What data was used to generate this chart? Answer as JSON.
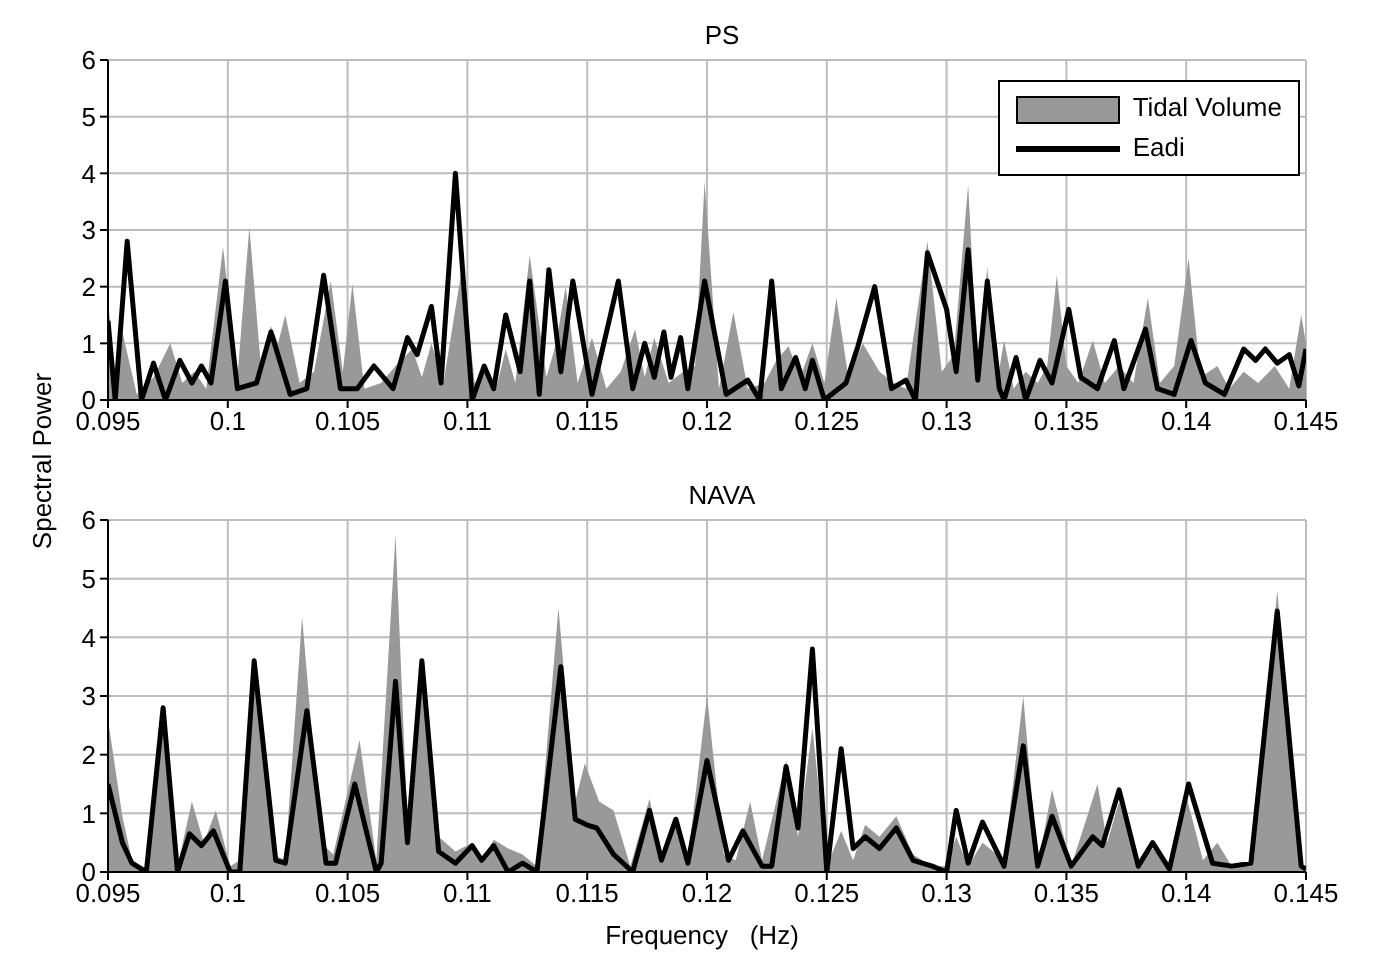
{
  "chart_data": [
    {
      "type": "area",
      "title": "PS",
      "ylabel": "Spectral Power",
      "xlim": [
        0.095,
        0.145
      ],
      "xticks": [
        0.095,
        0.1,
        0.105,
        0.11,
        0.115,
        0.12,
        0.125,
        0.13,
        0.135,
        0.14,
        0.145
      ],
      "ylim": [
        0,
        6
      ],
      "yticks": [
        0,
        1,
        2,
        3,
        4,
        5,
        6
      ],
      "grid": true,
      "legend": "top right",
      "series": [
        {
          "name": "Tidal Volume",
          "color": "#999999",
          "x": [
            0.095,
            0.0953,
            0.0956,
            0.0962,
            0.0969,
            0.0976,
            0.0981,
            0.0986,
            0.0991,
            0.0998,
            0.1004,
            0.1009,
            0.1014,
            0.1018,
            0.1021,
            0.1024,
            0.103,
            0.1036,
            0.1043,
            0.1048,
            0.1052,
            0.1057,
            0.1064,
            0.107,
            0.1077,
            0.1081,
            0.1085,
            0.109,
            0.1098,
            0.1103,
            0.1108,
            0.1112,
            0.1116,
            0.112,
            0.1126,
            0.1133,
            0.1137,
            0.1141,
            0.1146,
            0.1152,
            0.1158,
            0.1164,
            0.117,
            0.1174,
            0.1178,
            0.1184,
            0.119,
            0.1195,
            0.1199,
            0.1205,
            0.1211,
            0.1217,
            0.1224,
            0.1229,
            0.1234,
            0.1239,
            0.1244,
            0.1249,
            0.1254,
            0.1259,
            0.1265,
            0.1272,
            0.1278,
            0.1283,
            0.1292,
            0.1298,
            0.1303,
            0.1309,
            0.1313,
            0.1317,
            0.1321,
            0.1324,
            0.1328,
            0.1333,
            0.1338,
            0.1342,
            0.1346,
            0.135,
            0.1355,
            0.1361,
            0.1366,
            0.1372,
            0.1378,
            0.1384,
            0.1389,
            0.1395,
            0.1401,
            0.1406,
            0.1413,
            0.1418,
            0.1424,
            0.143,
            0.1437,
            0.1443,
            0.1448,
            0.145
          ],
          "values": [
            1.8,
            0.3,
            1.2,
            0.1,
            0.4,
            1.0,
            0.3,
            0.5,
            0.2,
            2.7,
            0.4,
            3.05,
            0.5,
            1.3,
            1.0,
            1.5,
            0.3,
            0.5,
            2.1,
            0.5,
            2.05,
            0.2,
            0.3,
            0.6,
            0.9,
            0.4,
            1.0,
            0.3,
            2.4,
            0.3,
            0.5,
            0.2,
            0.9,
            0.3,
            2.55,
            0.4,
            1.0,
            2.0,
            0.3,
            1.1,
            0.2,
            0.5,
            1.25,
            0.4,
            1.1,
            0.3,
            0.5,
            0.6,
            3.85,
            0.2,
            1.55,
            0.2,
            0.3,
            0.7,
            0.95,
            0.4,
            1.0,
            0.3,
            1.8,
            0.4,
            1.0,
            0.5,
            0.3,
            0.2,
            2.8,
            0.5,
            0.8,
            3.8,
            0.5,
            2.35,
            0.3,
            1.05,
            0.2,
            0.5,
            0.3,
            0.6,
            2.2,
            0.6,
            0.3,
            1.05,
            0.3,
            0.6,
            0.3,
            1.8,
            0.3,
            0.6,
            2.5,
            0.4,
            0.6,
            0.2,
            0.5,
            0.3,
            0.6,
            0.2,
            1.5,
            1.0
          ]
        },
        {
          "name": "Eadi",
          "type": "line",
          "color": "#000000",
          "x": [
            0.095,
            0.0953,
            0.0958,
            0.0964,
            0.0969,
            0.0974,
            0.098,
            0.0985,
            0.0989,
            0.0993,
            0.0999,
            0.1004,
            0.1012,
            0.1018,
            0.1026,
            0.1033,
            0.104,
            0.1047,
            0.1054,
            0.1061,
            0.1069,
            0.1075,
            0.1079,
            0.1085,
            0.1089,
            0.1095,
            0.1102,
            0.1107,
            0.1111,
            0.1116,
            0.1122,
            0.1126,
            0.113,
            0.1134,
            0.1139,
            0.1144,
            0.1152,
            0.1163,
            0.1169,
            0.1174,
            0.1178,
            0.1182,
            0.1185,
            0.1189,
            0.1192,
            0.1199,
            0.1208,
            0.1217,
            0.1222,
            0.1227,
            0.1231,
            0.1237,
            0.1241,
            0.1244,
            0.1249,
            0.1258,
            0.1263,
            0.127,
            0.1277,
            0.1283,
            0.1287,
            0.1292,
            0.13,
            0.1304,
            0.1309,
            0.1313,
            0.1317,
            0.1322,
            0.1324,
            0.1329,
            0.1333,
            0.1339,
            0.1344,
            0.1351,
            0.1356,
            0.1363,
            0.137,
            0.1374,
            0.1383,
            0.1388,
            0.1395,
            0.1402,
            0.1408,
            0.1416,
            0.1424,
            0.1429,
            0.1433,
            0.1438,
            0.1443,
            0.1447,
            0.145
          ],
          "values": [
            1.4,
            0,
            2.8,
            0,
            0.65,
            0,
            0.7,
            0.3,
            0.6,
            0.3,
            2.1,
            0.2,
            0.3,
            1.2,
            0.1,
            0.2,
            2.2,
            0.2,
            0.2,
            0.6,
            0.2,
            1.1,
            0.8,
            1.65,
            0.3,
            4.0,
            0,
            0.6,
            0.2,
            1.5,
            0.5,
            2.1,
            0.1,
            2.3,
            0.5,
            2.1,
            0.1,
            2.1,
            0.2,
            1.0,
            0.4,
            1.2,
            0.4,
            1.1,
            0.2,
            2.1,
            0.1,
            0.35,
            0,
            2.1,
            0.2,
            0.75,
            0.2,
            0.7,
            0,
            0.3,
            0.95,
            2.0,
            0.2,
            0.35,
            0,
            2.6,
            1.6,
            0.5,
            2.65,
            0.35,
            2.1,
            0.2,
            0,
            0.75,
            0,
            0.7,
            0.3,
            1.6,
            0.4,
            0.2,
            1.05,
            0.2,
            1.25,
            0.2,
            0.1,
            1.05,
            0.3,
            0.1,
            0.9,
            0.7,
            0.9,
            0.65,
            0.8,
            0.25,
            0.9
          ]
        }
      ]
    },
    {
      "type": "area",
      "title": "NAVA",
      "xlabel": "Frequency   (Hz)",
      "xlim": [
        0.095,
        0.145
      ],
      "xticks": [
        0.095,
        0.1,
        0.105,
        0.11,
        0.115,
        0.12,
        0.125,
        0.13,
        0.135,
        0.14,
        0.145
      ],
      "ylim": [
        0,
        6
      ],
      "yticks": [
        0,
        1,
        2,
        3,
        4,
        5,
        6
      ],
      "grid": true,
      "series": [
        {
          "color": "#999999",
          "x": [
            0.095,
            0.0956,
            0.096,
            0.0966,
            0.0973,
            0.0979,
            0.0985,
            0.099,
            0.0995,
            0.1001,
            0.1005,
            0.1011,
            0.1019,
            0.1024,
            0.1031,
            0.1039,
            0.1044,
            0.1055,
            0.1062,
            0.107,
            0.1075,
            0.1081,
            0.1088,
            0.1095,
            0.1102,
            0.1106,
            0.1111,
            0.1117,
            0.1123,
            0.1129,
            0.1138,
            0.1145,
            0.1149,
            0.1155,
            0.1161,
            0.1168,
            0.1176,
            0.1181,
            0.1187,
            0.1192,
            0.12,
            0.1207,
            0.1212,
            0.1218,
            0.1223,
            0.1233,
            0.1238,
            0.1244,
            0.125,
            0.1256,
            0.1261,
            0.1266,
            0.1272,
            0.1279,
            0.1286,
            0.1294,
            0.13,
            0.1304,
            0.1309,
            0.1315,
            0.1324,
            0.1332,
            0.1338,
            0.1344,
            0.1352,
            0.1363,
            0.1367,
            0.1372,
            0.138,
            0.1386,
            0.1393,
            0.14,
            0.1407,
            0.1413,
            0.1419,
            0.1427,
            0.1438,
            0.1448,
            0.145
          ],
          "values": [
            2.6,
            0.95,
            0.2,
            0.05,
            2.85,
            0.1,
            1.2,
            0.5,
            1.05,
            0.1,
            0.2,
            3.6,
            0.3,
            0.2,
            4.35,
            0.5,
            0.3,
            2.25,
            0.2,
            5.75,
            0.8,
            3.6,
            0.6,
            0.35,
            0.5,
            0.2,
            0.55,
            0.4,
            0.3,
            0.1,
            4.5,
            1.2,
            1.85,
            1.2,
            1.05,
            0.1,
            1.25,
            0.3,
            0.9,
            0.2,
            3.0,
            0.3,
            0.2,
            1.2,
            0.2,
            1.9,
            0.6,
            2.45,
            0.1,
            0.7,
            0.2,
            0.8,
            0.6,
            0.95,
            0.3,
            0.1,
            0.1,
            0.6,
            0.1,
            0.5,
            0.2,
            3.0,
            0.1,
            1.4,
            0.1,
            1.5,
            0.5,
            1.2,
            0.1,
            0.4,
            0.1,
            1.3,
            0.2,
            0.5,
            0.1,
            0.1,
            4.8,
            0.1,
            0.1
          ]
        },
        {
          "type": "line",
          "color": "#000000",
          "x": [
            0.095,
            0.0956,
            0.096,
            0.0966,
            0.0973,
            0.0979,
            0.0984,
            0.0989,
            0.0994,
            0.1001,
            0.1005,
            0.1011,
            0.102,
            0.1024,
            0.1033,
            0.1041,
            0.1045,
            0.1053,
            0.1062,
            0.1064,
            0.107,
            0.1075,
            0.1081,
            0.1088,
            0.1095,
            0.1102,
            0.1106,
            0.1111,
            0.1117,
            0.1123,
            0.1129,
            0.1139,
            0.1145,
            0.115,
            0.1154,
            0.1161,
            0.1169,
            0.1176,
            0.1181,
            0.1187,
            0.1192,
            0.12,
            0.1209,
            0.1215,
            0.1223,
            0.1227,
            0.1233,
            0.1238,
            0.1244,
            0.125,
            0.1256,
            0.1261,
            0.1266,
            0.1272,
            0.1279,
            0.1286,
            0.1294,
            0.13,
            0.1304,
            0.1309,
            0.1315,
            0.1324,
            0.1332,
            0.1338,
            0.1344,
            0.1352,
            0.1361,
            0.1365,
            0.1372,
            0.138,
            0.1386,
            0.1393,
            0.1401,
            0.1411,
            0.1419,
            0.1427,
            0.1438,
            0.1448,
            0.145
          ],
          "values": [
            1.5,
            0.5,
            0.15,
            0,
            2.8,
            0,
            0.65,
            0.45,
            0.7,
            0,
            0,
            3.6,
            0.2,
            0.15,
            2.75,
            0.15,
            0.15,
            1.5,
            0,
            0.15,
            3.25,
            0.5,
            3.6,
            0.35,
            0.15,
            0.45,
            0.2,
            0.45,
            0,
            0.15,
            0,
            3.5,
            0.9,
            0.8,
            0.75,
            0.3,
            0,
            1.05,
            0.2,
            0.9,
            0.15,
            1.9,
            0.2,
            0.7,
            0.1,
            0.1,
            1.8,
            0.75,
            3.8,
            0,
            2.1,
            0.4,
            0.6,
            0.4,
            0.75,
            0.2,
            0.1,
            0,
            1.05,
            0.15,
            0.85,
            0.1,
            2.15,
            0.1,
            0.95,
            0.1,
            0.6,
            0.45,
            1.4,
            0.1,
            0.5,
            0.05,
            1.5,
            0.15,
            0.1,
            0.15,
            4.45,
            0.1,
            0.05
          ]
        }
      ]
    }
  ]
}
